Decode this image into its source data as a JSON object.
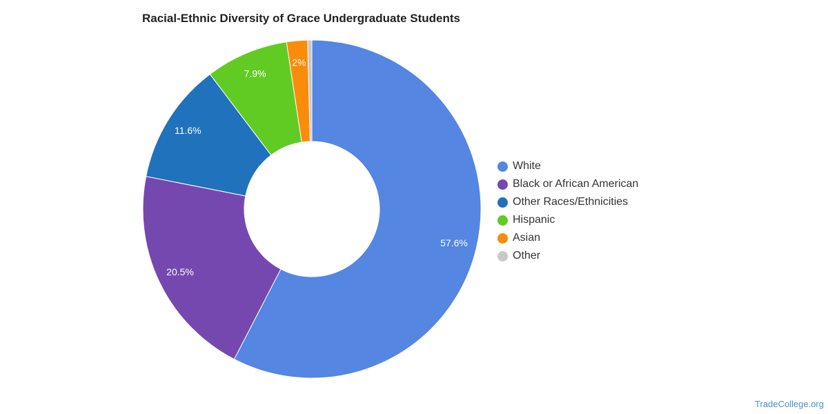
{
  "chart_data": {
    "type": "pie",
    "subtype": "donut",
    "title": "Racial-Ethnic Diversity of Grace Undergraduate Students",
    "labels": [
      "White",
      "Black or African American",
      "Other Races/Ethnicities",
      "Hispanic",
      "Asian",
      "Other"
    ],
    "values": [
      57.6,
      20.5,
      11.6,
      7.9,
      2.0,
      0.4
    ],
    "data_labels": [
      "57.6%",
      "20.5%",
      "11.6%",
      "7.9%",
      "2%",
      ""
    ],
    "colors": [
      "#5486e2",
      "#7548b0",
      "#1f72bb",
      "#61cb24",
      "#fa8c0c",
      "#c8c8c8"
    ],
    "legend_position": "right"
  },
  "credit": {
    "text": "TradeCollege.org"
  }
}
